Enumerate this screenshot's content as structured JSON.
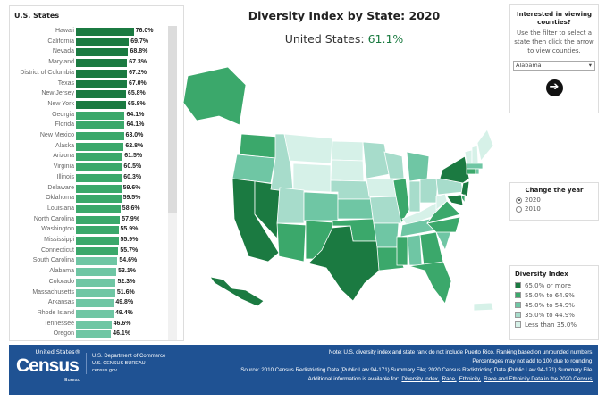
{
  "title": "Diversity Index by State: 2020",
  "us_label": "United States:",
  "us_value": "61.1%",
  "state_list": {
    "heading": "U.S. States",
    "rows": [
      {
        "name": "Hawaii",
        "value": 76.0,
        "label": "76.0%",
        "tier": 0
      },
      {
        "name": "California",
        "value": 69.7,
        "label": "69.7%",
        "tier": 0
      },
      {
        "name": "Nevada",
        "value": 68.8,
        "label": "68.8%",
        "tier": 0
      },
      {
        "name": "Maryland",
        "value": 67.3,
        "label": "67.3%",
        "tier": 0
      },
      {
        "name": "District of Columbia",
        "value": 67.2,
        "label": "67.2%",
        "tier": 0
      },
      {
        "name": "Texas",
        "value": 67.0,
        "label": "67.0%",
        "tier": 0
      },
      {
        "name": "New Jersey",
        "value": 65.8,
        "label": "65.8%",
        "tier": 0
      },
      {
        "name": "New York",
        "value": 65.8,
        "label": "65.8%",
        "tier": 0
      },
      {
        "name": "Georgia",
        "value": 64.1,
        "label": "64.1%",
        "tier": 1
      },
      {
        "name": "Florida",
        "value": 64.1,
        "label": "64.1%",
        "tier": 1
      },
      {
        "name": "New Mexico",
        "value": 63.0,
        "label": "63.0%",
        "tier": 1
      },
      {
        "name": "Alaska",
        "value": 62.8,
        "label": "62.8%",
        "tier": 1
      },
      {
        "name": "Arizona",
        "value": 61.5,
        "label": "61.5%",
        "tier": 1
      },
      {
        "name": "Virginia",
        "value": 60.5,
        "label": "60.5%",
        "tier": 1
      },
      {
        "name": "Illinois",
        "value": 60.3,
        "label": "60.3%",
        "tier": 1
      },
      {
        "name": "Delaware",
        "value": 59.6,
        "label": "59.6%",
        "tier": 1
      },
      {
        "name": "Oklahoma",
        "value": 59.5,
        "label": "59.5%",
        "tier": 1
      },
      {
        "name": "Louisiana",
        "value": 58.6,
        "label": "58.6%",
        "tier": 1
      },
      {
        "name": "North Carolina",
        "value": 57.9,
        "label": "57.9%",
        "tier": 1
      },
      {
        "name": "Washington",
        "value": 55.9,
        "label": "55.9%",
        "tier": 1
      },
      {
        "name": "Mississippi",
        "value": 55.9,
        "label": "55.9%",
        "tier": 1
      },
      {
        "name": "Connecticut",
        "value": 55.7,
        "label": "55.7%",
        "tier": 1
      },
      {
        "name": "South Carolina",
        "value": 54.6,
        "label": "54.6%",
        "tier": 2
      },
      {
        "name": "Alabama",
        "value": 53.1,
        "label": "53.1%",
        "tier": 2
      },
      {
        "name": "Colorado",
        "value": 52.3,
        "label": "52.3%",
        "tier": 2
      },
      {
        "name": "Massachusetts",
        "value": 51.6,
        "label": "51.6%",
        "tier": 2
      },
      {
        "name": "Arkansas",
        "value": 49.8,
        "label": "49.8%",
        "tier": 2
      },
      {
        "name": "Rhode Island",
        "value": 49.4,
        "label": "49.4%",
        "tier": 2
      },
      {
        "name": "Tennessee",
        "value": 46.6,
        "label": "46.6%",
        "tier": 2
      },
      {
        "name": "Oregon",
        "value": 46.1,
        "label": "46.1%",
        "tier": 2
      }
    ]
  },
  "counties": {
    "heading": "Interested in viewing counties?",
    "instructions": "Use the filter to select a state then click the arrow to view counties.",
    "selected_state": "Alabama",
    "dropdown_icon": "▾",
    "go_icon": "➔"
  },
  "year": {
    "heading": "Change the year",
    "options": [
      {
        "label": "2020",
        "selected": true
      },
      {
        "label": "2010",
        "selected": false
      }
    ]
  },
  "legend": {
    "heading": "Diversity Index",
    "items": [
      "65.0% or more",
      "55.0% to 64.9%",
      "45.0% to 54.9%",
      "35.0% to 44.9%",
      "Less than 35.0%"
    ]
  },
  "colors": {
    "tiers": [
      "#1b7a41",
      "#3ba86b",
      "#6fc6a4",
      "#a7dccb",
      "#d6f1e8"
    ],
    "footer": "#1f5293"
  },
  "map_tiers": {
    "WA": 1,
    "OR": 2,
    "CA": 0,
    "NV": 0,
    "ID": 3,
    "MT": 4,
    "WY": 4,
    "UT": 3,
    "AZ": 1,
    "CO": 2,
    "NM": 1,
    "ND": 4,
    "SD": 4,
    "NE": 3,
    "KS": 2,
    "OK": 1,
    "TX": 0,
    "MN": 3,
    "IA": 4,
    "MO": 3,
    "AR": 2,
    "LA": 1,
    "WI": 3,
    "IL": 1,
    "MI": 2,
    "IN": 3,
    "OH": 3,
    "KY": 4,
    "TN": 2,
    "MS": 1,
    "AL": 2,
    "GA": 1,
    "FL": 1,
    "SC": 2,
    "NC": 1,
    "VA": 1,
    "WV": 4,
    "PA": 3,
    "NY": 0,
    "VT": 4,
    "NH": 4,
    "ME": 4,
    "MA": 2,
    "CT": 1,
    "RI": 2,
    "NJ": 0,
    "DE": 1,
    "MD": 0,
    "AK": 1,
    "HI": 0,
    "PR": 4
  },
  "footer": {
    "logo_top": "United States®",
    "logo_main": "Census",
    "logo_bottom": "Bureau",
    "dept": "U.S. Department of Commerce",
    "bureau": "U.S. CENSUS BUREAU",
    "site": "census.gov",
    "note1": "Note: U.S. diversity index and state rank do not include Puerto Rico. Ranking based on unrounded numbers.",
    "note2": "Percentages may not add to 100 due to rounding.",
    "source": "Source: 2010 Census Redistricting Data (Public Law 94-171) Summary File; 2020 Census Redistricting Data (Public Law 94-171) Summary File.",
    "additional": "Additional information is available for:",
    "links": [
      "Diversity Index,",
      "Race,",
      "Ethnicity,",
      "Race and Ethnicity Data in the 2020 Census."
    ]
  }
}
